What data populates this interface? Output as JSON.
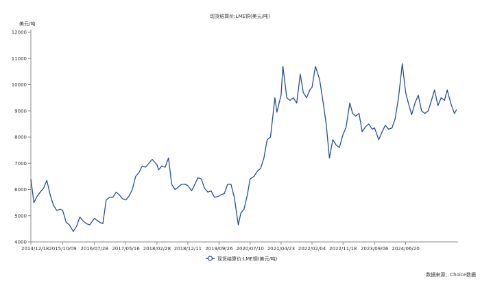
{
  "chart_data": {
    "type": "line",
    "title": "现货结算价:LME铜(美元/吨)",
    "y_unit_label": "美元/吨",
    "ylim": [
      4000,
      12000
    ],
    "y_ticks": [
      4000,
      5000,
      6000,
      7000,
      8000,
      9000,
      10000,
      11000,
      12000
    ],
    "x_ticks": [
      "2014/12/18",
      "2015/10/09",
      "2016/07/28",
      "2017/05/16",
      "2018/02/28",
      "2018/12/11",
      "2019/09/26",
      "2020/07/10",
      "2021/04/23",
      "2022/02/04",
      "2022/11/18",
      "2023/09/06",
      "2024/06/20"
    ],
    "grid": false,
    "legend": "bottom-center",
    "source_note": "数据来源：Choice数据",
    "color": "#1f4e9c",
    "series": [
      {
        "name": "现货结算价:LME铜(美元/吨)",
        "points": [
          [
            "2014/12/18",
            6400
          ],
          [
            "2015/01/15",
            5500
          ],
          [
            "2015/02/15",
            5750
          ],
          [
            "2015/03/15",
            5900
          ],
          [
            "2015/04/15",
            6050
          ],
          [
            "2015/05/15",
            6350
          ],
          [
            "2015/06/15",
            5800
          ],
          [
            "2015/07/15",
            5400
          ],
          [
            "2015/08/15",
            5200
          ],
          [
            "2015/09/15",
            5250
          ],
          [
            "2015/10/09",
            5200
          ],
          [
            "2015/11/10",
            4750
          ],
          [
            "2015/12/10",
            4650
          ],
          [
            "2016/01/15",
            4400
          ],
          [
            "2016/02/15",
            4600
          ],
          [
            "2016/03/15",
            4950
          ],
          [
            "2016/04/15",
            4800
          ],
          [
            "2016/05/15",
            4700
          ],
          [
            "2016/06/15",
            4650
          ],
          [
            "2016/07/28",
            4900
          ],
          [
            "2016/09/15",
            4750
          ],
          [
            "2016/10/15",
            4700
          ],
          [
            "2016/11/15",
            5600
          ],
          [
            "2016/12/15",
            5700
          ],
          [
            "2017/01/15",
            5700
          ],
          [
            "2017/02/15",
            5900
          ],
          [
            "2017/03/15",
            5800
          ],
          [
            "2017/04/15",
            5650
          ],
          [
            "2017/05/16",
            5600
          ],
          [
            "2017/06/15",
            5750
          ],
          [
            "2017/07/15",
            6000
          ],
          [
            "2017/08/15",
            6500
          ],
          [
            "2017/09/15",
            6650
          ],
          [
            "2017/10/15",
            6900
          ],
          [
            "2017/11/15",
            6850
          ],
          [
            "2017/12/15",
            7000
          ],
          [
            "2018/01/15",
            7150
          ],
          [
            "2018/02/28",
            6950
          ],
          [
            "2018/03/15",
            6750
          ],
          [
            "2018/04/15",
            6900
          ],
          [
            "2018/05/15",
            6850
          ],
          [
            "2018/06/15",
            7200
          ],
          [
            "2018/07/15",
            6200
          ],
          [
            "2018/08/15",
            6000
          ],
          [
            "2018/09/15",
            6100
          ],
          [
            "2018/10/15",
            6200
          ],
          [
            "2018/11/15",
            6200
          ],
          [
            "2018/12/11",
            6150
          ],
          [
            "2019/01/15",
            5950
          ],
          [
            "2019/02/15",
            6200
          ],
          [
            "2019/03/15",
            6450
          ],
          [
            "2019/04/15",
            6400
          ],
          [
            "2019/05/15",
            6050
          ],
          [
            "2019/06/15",
            5900
          ],
          [
            "2019/07/15",
            5950
          ],
          [
            "2019/08/15",
            5700
          ],
          [
            "2019/09/26",
            5750
          ],
          [
            "2019/10/15",
            5800
          ],
          [
            "2019/11/15",
            5850
          ],
          [
            "2019/12/15",
            6200
          ],
          [
            "2020/01/15",
            6200
          ],
          [
            "2020/02/15",
            5700
          ],
          [
            "2020/03/23",
            4650
          ],
          [
            "2020/04/15",
            5100
          ],
          [
            "2020/05/15",
            5250
          ],
          [
            "2020/06/15",
            5800
          ],
          [
            "2020/07/10",
            6400
          ],
          [
            "2020/08/15",
            6500
          ],
          [
            "2020/09/15",
            6700
          ],
          [
            "2020/10/15",
            6800
          ],
          [
            "2020/11/15",
            7200
          ],
          [
            "2020/12/15",
            7900
          ],
          [
            "2021/01/15",
            8000
          ],
          [
            "2021/02/25",
            9500
          ],
          [
            "2021/03/15",
            8950
          ],
          [
            "2021/04/23",
            9600
          ],
          [
            "2021/05/10",
            10700
          ],
          [
            "2021/06/15",
            9500
          ],
          [
            "2021/07/15",
            9400
          ],
          [
            "2021/08/15",
            9500
          ],
          [
            "2021/09/15",
            9300
          ],
          [
            "2021/10/18",
            10400
          ],
          [
            "2021/11/15",
            9700
          ],
          [
            "2021/12/15",
            9500
          ],
          [
            "2022/01/15",
            9800
          ],
          [
            "2022/02/04",
            9900
          ],
          [
            "2022/03/07",
            10700
          ],
          [
            "2022/04/15",
            10200
          ],
          [
            "2022/05/15",
            9400
          ],
          [
            "2022/06/15",
            8500
          ],
          [
            "2022/07/15",
            7200
          ],
          [
            "2022/08/15",
            7900
          ],
          [
            "2022/09/15",
            7700
          ],
          [
            "2022/10/15",
            7600
          ],
          [
            "2022/11/18",
            8100
          ],
          [
            "2022/12/15",
            8350
          ],
          [
            "2023/01/20",
            9300
          ],
          [
            "2023/02/15",
            8900
          ],
          [
            "2023/03/15",
            8800
          ],
          [
            "2023/04/15",
            8900
          ],
          [
            "2023/05/15",
            8200
          ],
          [
            "2023/06/15",
            8400
          ],
          [
            "2023/07/15",
            8500
          ],
          [
            "2023/08/15",
            8300
          ],
          [
            "2023/09/06",
            8350
          ],
          [
            "2023/10/15",
            7900
          ],
          [
            "2023/11/15",
            8200
          ],
          [
            "2023/12/15",
            8450
          ],
          [
            "2024/01/15",
            8300
          ],
          [
            "2024/02/15",
            8350
          ],
          [
            "2024/03/15",
            8700
          ],
          [
            "2024/04/15",
            9500
          ],
          [
            "2024/05/20",
            10800
          ],
          [
            "2024/06/20",
            9700
          ],
          [
            "2024/07/15",
            9300
          ],
          [
            "2024/08/15",
            8850
          ],
          [
            "2024/09/15",
            9300
          ],
          [
            "2024/10/15",
            9600
          ],
          [
            "2024/11/15",
            9000
          ],
          [
            "2024/12/15",
            8900
          ],
          [
            "2025/01/15",
            9000
          ],
          [
            "2025/02/07",
            9300
          ],
          [
            "2025/03/15",
            9800
          ],
          [
            "2025/04/15",
            9200
          ],
          [
            "2025/05/15",
            9500
          ],
          [
            "2025/06/15",
            9400
          ],
          [
            "2025/07/10",
            9800
          ],
          [
            "2025/08/15",
            9250
          ],
          [
            "2025/09/15",
            8900
          ],
          [
            "2025/10/06",
            9050
          ]
        ]
      }
    ]
  }
}
